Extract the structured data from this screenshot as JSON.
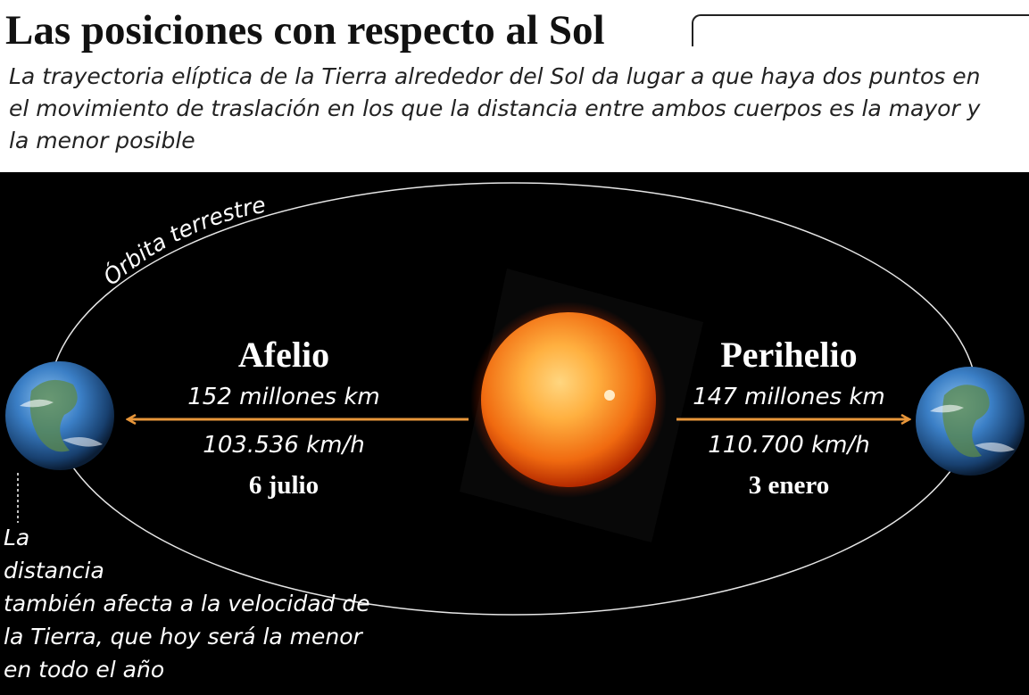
{
  "header": {
    "title": "Las posiciones con respecto al Sol",
    "subtitle": "La trayectoria elíptica de la Tierra alrededor del Sol da lugar a que haya dos puntos en el movimiento de traslación en los que la distancia entre ambos cuerpos es la mayor y la menor posible"
  },
  "diagram": {
    "orbit_label": "Órbita terrestre",
    "aphelion": {
      "name": "Afelio",
      "distance": "152 millones km",
      "speed": "103.536 km/h",
      "date": "6 julio"
    },
    "perihelion": {
      "name": "Perihelio",
      "distance": "147 millones km",
      "speed": "110.700 km/h",
      "date": "3 enero"
    },
    "note": {
      "line1": "La",
      "line2": "distancia",
      "rest": "también afecta a la velocidad de la Tierra, que hoy será la menor en todo el año"
    }
  },
  "colors": {
    "background": "#000000",
    "arrow": "#e8963a",
    "sun": "#f06a10",
    "earth": "#2f6db3"
  }
}
